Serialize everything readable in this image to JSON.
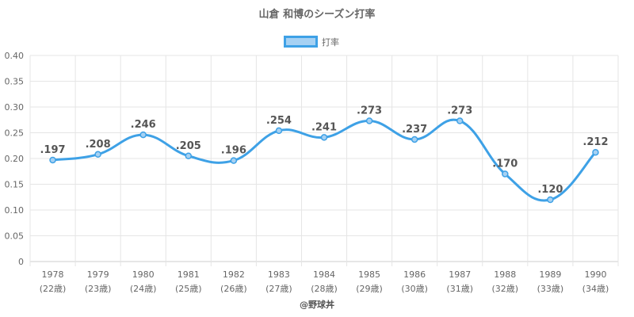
{
  "chart_data": {
    "type": "line",
    "title": "山倉 和博のシーズン打率",
    "legend": {
      "label": "打率",
      "position": "top"
    },
    "x": [
      "1978",
      "1979",
      "1980",
      "1981",
      "1982",
      "1983",
      "1984",
      "1985",
      "1986",
      "1987",
      "1988",
      "1989",
      "1990"
    ],
    "x_sublabels": [
      "(22歳)",
      "(23歳)",
      "(24歳)",
      "(25歳)",
      "(26歳)",
      "(27歳)",
      "(28歳)",
      "(29歳)",
      "(30歳)",
      "(31歳)",
      "(32歳)",
      "(33歳)",
      "(34歳)"
    ],
    "series": [
      {
        "name": "打率",
        "values": [
          0.197,
          0.208,
          0.246,
          0.205,
          0.196,
          0.254,
          0.241,
          0.273,
          0.237,
          0.273,
          0.17,
          0.12,
          0.212
        ],
        "labels": [
          ".197",
          ".208",
          ".246",
          ".205",
          ".196",
          ".254",
          ".241",
          ".273",
          ".237",
          ".273",
          ".170",
          ".120",
          ".212"
        ]
      }
    ],
    "y_ticks": [
      "0",
      "0.05",
      "0.10",
      "0.15",
      "0.20",
      "0.25",
      "0.30",
      "0.35",
      "0.40"
    ],
    "ylim": [
      0,
      0.4
    ],
    "grid": true,
    "colors": {
      "line": "#3ea1e6",
      "fill": "#a6d1f3",
      "grid": "#e5e5e5"
    }
  },
  "credit": "@野球丼"
}
